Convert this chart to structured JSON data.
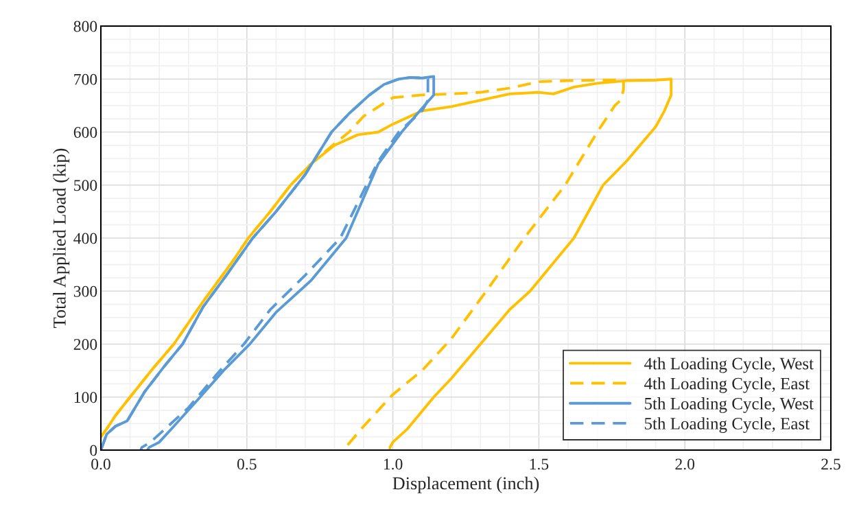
{
  "chart_data": {
    "type": "line",
    "xlabel": "Displacement (inch)",
    "ylabel": "Total Applied Load (kip)",
    "xlim": [
      0,
      2.5
    ],
    "xticks": [
      {
        "value": 0,
        "label": "0.0"
      },
      0.5,
      {
        "value": 1,
        "label": "1.0"
      },
      1.5,
      {
        "value": 2,
        "label": "2.0"
      },
      2.5
    ],
    "ylim": [
      0,
      800
    ],
    "yticks": [
      0,
      100,
      200,
      300,
      400,
      500,
      600,
      700,
      800
    ],
    "grid": true,
    "legend": "bottom right",
    "series": [
      {
        "name": "4th Loading Cycle, West",
        "color": "#ffc000",
        "line_style": "solid",
        "x": [
          0,
          0.02,
          0.05,
          0.1,
          0.18,
          0.25,
          0.35,
          0.45,
          0.505,
          0.58,
          0.65,
          0.72,
          0.8,
          0.88,
          0.95,
          1.0,
          1.1,
          1.2,
          1.3,
          1.4,
          1.5,
          1.55,
          1.62,
          1.7,
          1.8,
          1.9,
          1.953,
          1.953,
          1.93,
          1.9,
          1.8,
          1.72,
          1.62,
          1.47,
          1.4,
          1.3,
          1.2,
          1.14,
          1.05,
          1.0,
          0.99,
          0.99
        ],
        "values": [
          25,
          40,
          65,
          100,
          155,
          200,
          280,
          355,
          400,
          450,
          500,
          540,
          575,
          595,
          600,
          615,
          640,
          648,
          660,
          672,
          675,
          672,
          685,
          692,
          697,
          698,
          700,
          670,
          640,
          610,
          545,
          500,
          400,
          300,
          265,
          200,
          135,
          100,
          40,
          15,
          5,
          0
        ]
      },
      {
        "name": "4th Loading Cycle, East",
        "color": "#ffc000",
        "line_style": "dashed",
        "x": [
          0,
          0.02,
          0.05,
          0.1,
          0.18,
          0.25,
          0.35,
          0.45,
          0.505,
          0.58,
          0.65,
          0.72,
          0.8,
          0.85,
          0.9,
          1.0,
          1.1,
          1.2,
          1.3,
          1.4,
          1.5,
          1.6,
          1.7,
          1.79,
          1.79,
          1.78,
          1.76,
          1.7,
          1.59,
          1.45,
          1.32,
          1.2,
          1.1,
          1.0,
          0.9,
          0.83
        ],
        "values": [
          25,
          40,
          65,
          100,
          155,
          200,
          280,
          355,
          400,
          450,
          500,
          540,
          578,
          600,
          630,
          665,
          670,
          672,
          675,
          683,
          695,
          697,
          698,
          698,
          680,
          660,
          650,
          600,
          500,
          400,
          300,
          210,
          150,
          105,
          45,
          0
        ]
      },
      {
        "name": "5th Loading Cycle, West",
        "color": "#5b9bd5",
        "line_style": "solid",
        "x": [
          0,
          0.02,
          0.05,
          0.09,
          0.15,
          0.22,
          0.28,
          0.35,
          0.43,
          0.52,
          0.6,
          0.7,
          0.79,
          0.85,
          0.92,
          0.97,
          1.02,
          1.06,
          1.1,
          1.14,
          1.14,
          1.1,
          1.03,
          0.95,
          0.84,
          0.72,
          0.6,
          0.51,
          0.42,
          0.34,
          0.25,
          0.2,
          0.165,
          0.16
        ],
        "values": [
          0,
          30,
          45,
          55,
          110,
          160,
          200,
          270,
          330,
          400,
          450,
          520,
          600,
          635,
          670,
          690,
          700,
          703,
          702,
          705,
          670,
          645,
          600,
          540,
          400,
          320,
          260,
          200,
          150,
          100,
          45,
          15,
          5,
          0
        ]
      },
      {
        "name": "5th Loading Cycle, East",
        "color": "#5b9bd5",
        "line_style": "dashed",
        "x": [
          0,
          0.02,
          0.05,
          0.09,
          0.15,
          0.22,
          0.28,
          0.35,
          0.43,
          0.52,
          0.6,
          0.7,
          0.79,
          0.85,
          0.92,
          0.97,
          1.02,
          1.06,
          1.1,
          1.12,
          1.12,
          1.1,
          1.02,
          0.95,
          0.82,
          0.7,
          0.58,
          0.49,
          0.4,
          0.3,
          0.22,
          0.17,
          0.14,
          0.137
        ],
        "values": [
          0,
          30,
          45,
          55,
          110,
          160,
          200,
          270,
          330,
          400,
          450,
          520,
          600,
          635,
          670,
          690,
          700,
          703,
          702,
          700,
          660,
          640,
          600,
          545,
          400,
          330,
          265,
          200,
          145,
          80,
          40,
          15,
          5,
          0
        ]
      }
    ]
  }
}
